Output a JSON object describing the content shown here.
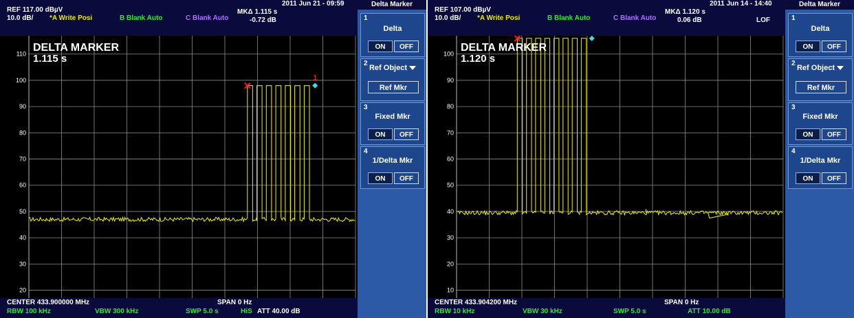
{
  "screens": [
    {
      "header": {
        "ref": "REF  117.00 dBµV",
        "scale": "10.0 dB/",
        "trace_a": "*A Write Posi",
        "trace_b": "B Blank Auto",
        "trace_c": "C Blank Auto",
        "datetime": "2011 Jun 21 - 09:59",
        "marker_delta": "MKΔ 1.115 s",
        "marker_level": "-0.72 dB",
        "lof": ""
      },
      "overlay": {
        "title": "DELTA MARKER",
        "value": "1.115 s",
        "marker_number": "1"
      },
      "footer": {
        "center": "CENTER 433.900000 MHz",
        "span": "SPAN 0 Hz",
        "rbw": "RBW 100 kHz",
        "vbw": "VBW  300 kHz",
        "swp": "SWP  5.0 s",
        "his": "HiS",
        "att": "ATT 40.00 dB"
      },
      "y_axis": {
        "ticks": [
          "110",
          "100",
          "90",
          "80",
          "70",
          "60",
          "50",
          "40",
          "30",
          "20"
        ],
        "top": 117,
        "div": 10
      },
      "trace": {
        "baseline": 47,
        "high": 98,
        "x_start": 0.669,
        "x_end": 0.872,
        "pulses": 7
      },
      "softkeys": {
        "title": "Delta Marker",
        "k1": {
          "num": "1",
          "label": "Delta",
          "on": "ON",
          "off": "OFF"
        },
        "k2": {
          "num": "2",
          "label": "Ref Object",
          "button": "Ref Mkr"
        },
        "k3": {
          "num": "3",
          "label": "Fixed Mkr",
          "on": "ON",
          "off": "OFF"
        },
        "k4": {
          "num": "4",
          "label": "1/Delta Mkr",
          "on": "ON",
          "off": "OFF"
        }
      }
    },
    {
      "header": {
        "ref": "REF  107.00 dBµV",
        "scale": "10.0 dB/",
        "trace_a": "*A Write Posi",
        "trace_b": "B Blank Auto",
        "trace_c": "C Blank Auto",
        "datetime": "2011 Jun 14 - 14:40",
        "marker_delta": "MKΔ 1.120 s",
        "marker_level": "0.06 dB",
        "lof": "LOF"
      },
      "overlay": {
        "title": "DELTA MARKER",
        "value": "1.120 s",
        "marker_number": ""
      },
      "footer": {
        "center": "CENTER 433.904200 MHz",
        "span": "SPAN 0 Hz",
        "rbw": "RBW  10 kHz",
        "vbw": "VBW  30 kHz",
        "swp": "SWP  5.0 s",
        "his": "",
        "att": "ATT 10.00 dB"
      },
      "y_axis": {
        "ticks": [
          "100",
          "90",
          "80",
          "70",
          "60",
          "50",
          "40",
          "30",
          "20",
          "10"
        ],
        "top": 107,
        "div": 10
      },
      "trace": {
        "baseline": 39.5,
        "high": 106,
        "x_start": 0.186,
        "x_end": 0.41,
        "pulses": 8
      },
      "softkeys": {
        "title": "Delta Marker",
        "k1": {
          "num": "1",
          "label": "Delta",
          "on": "ON",
          "off": "OFF"
        },
        "k2": {
          "num": "2",
          "label": "Ref Object",
          "button": "Ref Mkr"
        },
        "k3": {
          "num": "3",
          "label": "Fixed Mkr",
          "on": "ON",
          "off": "OFF"
        },
        "k4": {
          "num": "4",
          "label": "1/Delta Mkr",
          "on": "ON",
          "off": "OFF"
        }
      }
    }
  ],
  "colors": {
    "trace": "#f0f000",
    "grid": "#8c8c8c",
    "marker_ref": "#ff2020",
    "marker_delta": "#40d8e8",
    "softkey_bg": "#2c5aa6"
  }
}
